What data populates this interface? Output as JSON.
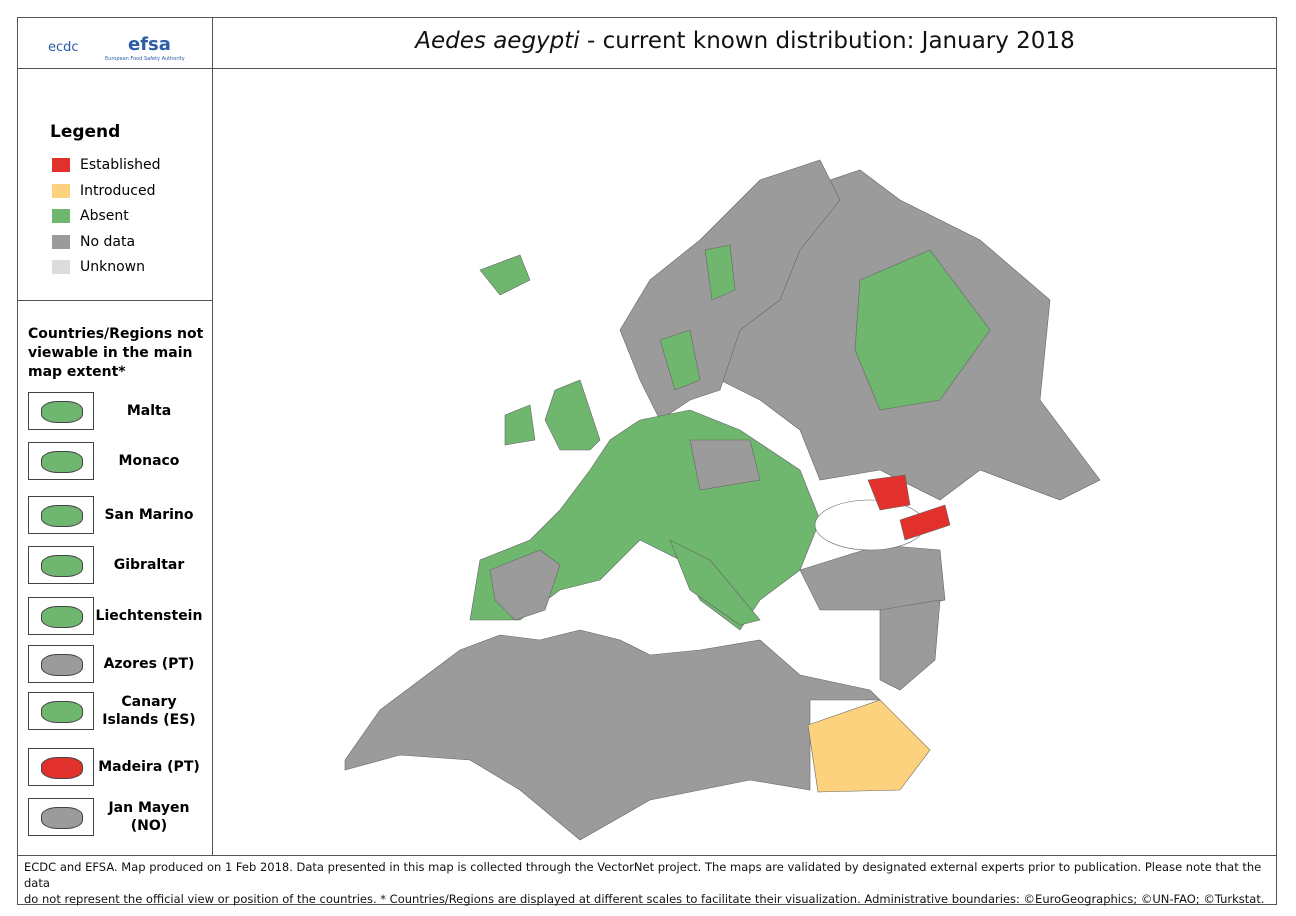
{
  "header": {
    "logo_ecdc": "ecdc",
    "logo_efsa": "efsa",
    "logo_efsa_sub": "European Food Safety Authority",
    "title_species": "Aedes aegypti",
    "title_rest": " - current known distribution: January 2018"
  },
  "legend": {
    "title": "Legend",
    "items": [
      {
        "label": "Established",
        "color": "#e2312d"
      },
      {
        "label": "Introduced",
        "color": "#fdd27f"
      },
      {
        "label": "Absent",
        "color": "#6fb66f"
      },
      {
        "label": "No data",
        "color": "#9b9b9b"
      },
      {
        "label": "Unknown",
        "color": "#dcdcdc"
      }
    ]
  },
  "insets": {
    "title": "Countries/Regions not viewable in the main map extent*",
    "items": [
      {
        "label": "Malta",
        "color": "#6fb66f"
      },
      {
        "label": "Monaco",
        "color": "#6fb66f"
      },
      {
        "label": "San Marino",
        "color": "#6fb66f"
      },
      {
        "label": "Gibraltar",
        "color": "#6fb66f"
      },
      {
        "label": "Liechtenstein",
        "color": "#6fb66f"
      },
      {
        "label": "Azores (PT)",
        "color": "#9b9b9b"
      },
      {
        "label": "Canary Islands (ES)",
        "color": "#6fb66f"
      },
      {
        "label": "Madeira (PT)",
        "color": "#e2312d"
      },
      {
        "label": "Jan Mayen (NO)",
        "color": "#9b9b9b"
      }
    ]
  },
  "footer": {
    "lines": [
      "ECDC and EFSA. Map produced on 1 Feb 2018. Data presented in this map is collected through the VectorNet project. The maps are validated by designated external experts prior to publication. Please note that the data",
      "do not represent the official view or position of the countries. * Countries/Regions are displayed at different scales to facilitate their visualization. Administrative boundaries: ©EuroGeographics; ©UN-FAO; ©Turkstat."
    ]
  }
}
